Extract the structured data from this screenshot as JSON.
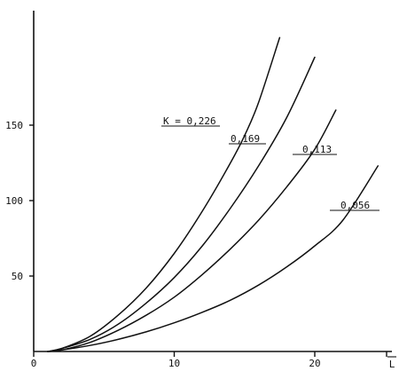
{
  "chart_data": {
    "type": "line",
    "title": "",
    "xlabel": "L",
    "ylabel": "",
    "xlim": [
      0,
      25
    ],
    "ylim": [
      0,
      200
    ],
    "xticks": [
      0,
      10,
      20
    ],
    "yticks": [
      50,
      100,
      150
    ],
    "grid": false,
    "legend": "none",
    "series": [
      {
        "name": "K = 0,226",
        "x": [
          1,
          2,
          4,
          6,
          8,
          10,
          12,
          14,
          15,
          16,
          17.5
        ],
        "y": [
          0,
          2,
          10,
          24,
          42,
          65,
          93,
          125,
          143,
          165,
          208
        ]
      },
      {
        "name": "0,169",
        "x": [
          1,
          2,
          4,
          6,
          8,
          10,
          12,
          14,
          16,
          18,
          20
        ],
        "y": [
          0,
          2,
          8,
          18,
          32,
          49,
          70,
          95,
          123,
          155,
          195
        ]
      },
      {
        "name": "0,113",
        "x": [
          1,
          2,
          4,
          6,
          8,
          10,
          12,
          14,
          16,
          18,
          20,
          21.5
        ],
        "y": [
          0,
          1,
          6,
          14,
          24,
          36,
          51,
          68,
          87,
          109,
          134,
          160
        ]
      },
      {
        "name": "0,056",
        "x": [
          1,
          2,
          4,
          6,
          8,
          10,
          12,
          14,
          16,
          18,
          20,
          22,
          24.5
        ],
        "y": [
          0,
          1,
          4,
          8,
          13,
          19,
          26,
          34,
          44,
          56,
          70,
          87,
          123
        ]
      }
    ]
  }
}
